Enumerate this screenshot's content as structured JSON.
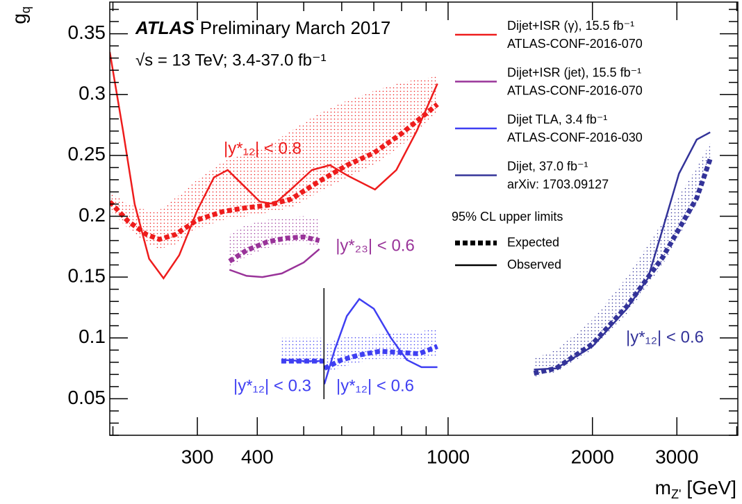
{
  "chart_data": {
    "type": "line",
    "log_x": true,
    "experiment": "ATLAS",
    "title": "Preliminary March 2017",
    "subtitle": "√s = 13 TeV; 3.4-37.0 fb⁻¹",
    "x_label": {
      "symbol": "m",
      "sub": "Z'",
      "unit": "[GeV]"
    },
    "y_label": {
      "symbol": "g",
      "sub": "q"
    },
    "xlim": [
      197,
      4020
    ],
    "ylim": [
      0.02,
      0.376
    ],
    "xticks": [
      300,
      400,
      1000,
      2000,
      3000
    ],
    "xminorticks": [
      200,
      500,
      600,
      700,
      800,
      900,
      4000
    ],
    "yticks": [
      0.05,
      0.1,
      0.15,
      0.2,
      0.25,
      0.3,
      0.35
    ],
    "yminorticks": [
      0.02,
      0.03,
      0.04,
      0.06,
      0.07,
      0.08,
      0.09,
      0.11,
      0.12,
      0.13,
      0.14,
      0.16,
      0.17,
      0.18,
      0.19,
      0.21,
      0.22,
      0.23,
      0.24,
      0.26,
      0.27,
      0.28,
      0.29,
      0.31,
      0.32,
      0.33,
      0.34,
      0.36,
      0.37
    ],
    "series": [
      {
        "name": "Dijet+ISR (γ), 15.5 fb⁻¹",
        "reference": "ATLAS-CONF-2016-070",
        "color": "#ee1c1c",
        "observed": {
          "x": [
            197,
            210,
            222,
            238,
            255,
            275,
            300,
            325,
            347,
            375,
            405,
            434,
            470,
            520,
            567,
            620,
            704,
            780,
            860,
            950
          ],
          "values": [
            0.335,
            0.27,
            0.21,
            0.165,
            0.149,
            0.168,
            0.205,
            0.232,
            0.238,
            0.225,
            0.212,
            0.21,
            0.222,
            0.238,
            0.242,
            0.233,
            0.222,
            0.238,
            0.27,
            0.309
          ]
        },
        "expected": {
          "x": [
            197,
            215,
            235,
            250,
            270,
            300,
            340,
            380,
            420,
            470,
            540,
            616,
            700,
            800,
            950
          ],
          "values": [
            0.212,
            0.196,
            0.185,
            0.181,
            0.185,
            0.197,
            0.204,
            0.207,
            0.209,
            0.214,
            0.229,
            0.242,
            0.252,
            0.268,
            0.292
          ]
        },
        "band": {
          "x": [
            197,
            215,
            235,
            250,
            270,
            300,
            340,
            380,
            420,
            470,
            540,
            616,
            700,
            800,
            950
          ],
          "low": [
            0.205,
            0.19,
            0.178,
            0.173,
            0.177,
            0.19,
            0.197,
            0.2,
            0.203,
            0.207,
            0.22,
            0.232,
            0.242,
            0.258,
            0.285
          ],
          "high": [
            0.22,
            0.21,
            0.205,
            0.205,
            0.215,
            0.23,
            0.245,
            0.252,
            0.258,
            0.27,
            0.285,
            0.295,
            0.303,
            0.31,
            0.315
          ]
        }
      },
      {
        "name": "Dijet+ISR (jet), 15.5 fb⁻¹",
        "reference": "ATLAS-CONF-2016-070",
        "color": "#993399",
        "observed": {
          "x": [
            350,
            380,
            410,
            450,
            500,
            539
          ],
          "values": [
            0.156,
            0.151,
            0.15,
            0.153,
            0.162,
            0.173
          ]
        },
        "expected": {
          "x": [
            350,
            380,
            420,
            460,
            500,
            539
          ],
          "values": [
            0.163,
            0.172,
            0.179,
            0.182,
            0.183,
            0.18
          ]
        },
        "band": {
          "x": [
            350,
            380,
            420,
            460,
            500,
            539
          ],
          "low": [
            0.158,
            0.167,
            0.174,
            0.177,
            0.178,
            0.175
          ],
          "high": [
            0.185,
            0.193,
            0.197,
            0.199,
            0.2,
            0.197
          ]
        }
      },
      {
        "name": "Dijet TLA, 3.4 fb⁻¹",
        "reference": "ATLAS-CONF-2016-030",
        "color": "#3f3ff2",
        "observed": {
          "x": [
            449,
            500,
            550,
            551,
            552,
            580,
            615,
            653,
            700,
            760,
            820,
            880,
            950
          ],
          "values": [
            0.082,
            0.081,
            0.081,
            null,
            0.062,
            0.09,
            0.118,
            0.132,
            0.124,
            0.1,
            0.082,
            0.076,
            0.076
          ]
        },
        "expected": {
          "x": [
            449,
            500,
            550,
            551,
            552,
            600,
            653,
            720,
            800,
            870,
            950
          ],
          "values": [
            0.081,
            0.081,
            0.081,
            null,
            0.075,
            0.082,
            0.086,
            0.089,
            0.088,
            0.087,
            0.093
          ]
        },
        "band": {
          "x": [
            449,
            500,
            550,
            551,
            552,
            600,
            653,
            720,
            800,
            870,
            950
          ],
          "low": [
            0.078,
            0.078,
            0.078,
            null,
            0.07,
            0.076,
            0.08,
            0.083,
            0.083,
            0.082,
            0.085
          ],
          "high": [
            0.1,
            0.1,
            0.1,
            null,
            0.095,
            0.1,
            0.102,
            0.103,
            0.104,
            0.105,
            0.108
          ]
        }
      },
      {
        "name": "Dijet, 37.0 fb⁻¹",
        "reference": "arXiv: 1703.09127",
        "color": "#333399",
        "observed": {
          "x": [
            1510,
            1680,
            2000,
            2360,
            2610,
            2800,
            3030,
            3300,
            3520
          ],
          "values": [
            0.074,
            0.075,
            0.093,
            0.124,
            0.149,
            0.189,
            0.235,
            0.263,
            0.269
          ]
        },
        "expected": {
          "x": [
            1510,
            1680,
            2000,
            2360,
            2800,
            3300,
            3520
          ],
          "values": [
            0.071,
            0.075,
            0.095,
            0.126,
            0.166,
            0.215,
            0.247
          ]
        },
        "band": {
          "x": [
            1510,
            1680,
            2000,
            2360,
            2800,
            3300,
            3520
          ],
          "low": [
            0.068,
            0.072,
            0.09,
            0.12,
            0.16,
            0.21,
            0.245
          ],
          "high": [
            0.083,
            0.09,
            0.115,
            0.15,
            0.195,
            0.24,
            0.26
          ]
        }
      }
    ],
    "separator_x": 551,
    "legend_title": "95% CL upper limits",
    "legend_expected": "Expected",
    "legend_observed": "Observed",
    "annotations": [
      {
        "text": "|y*₁₂| < 0.8",
        "color": "#ee1c1c"
      },
      {
        "text": "|y*₂₃| < 0.6",
        "color": "#993399"
      },
      {
        "text": "|y*₁₂| < 0.3",
        "color": "#3f3ff2"
      },
      {
        "text": "|y*₁₂| < 0.6",
        "color": "#3f3ff2"
      },
      {
        "text": "|y*₁₂| < 0.6",
        "color": "#333399"
      }
    ]
  }
}
